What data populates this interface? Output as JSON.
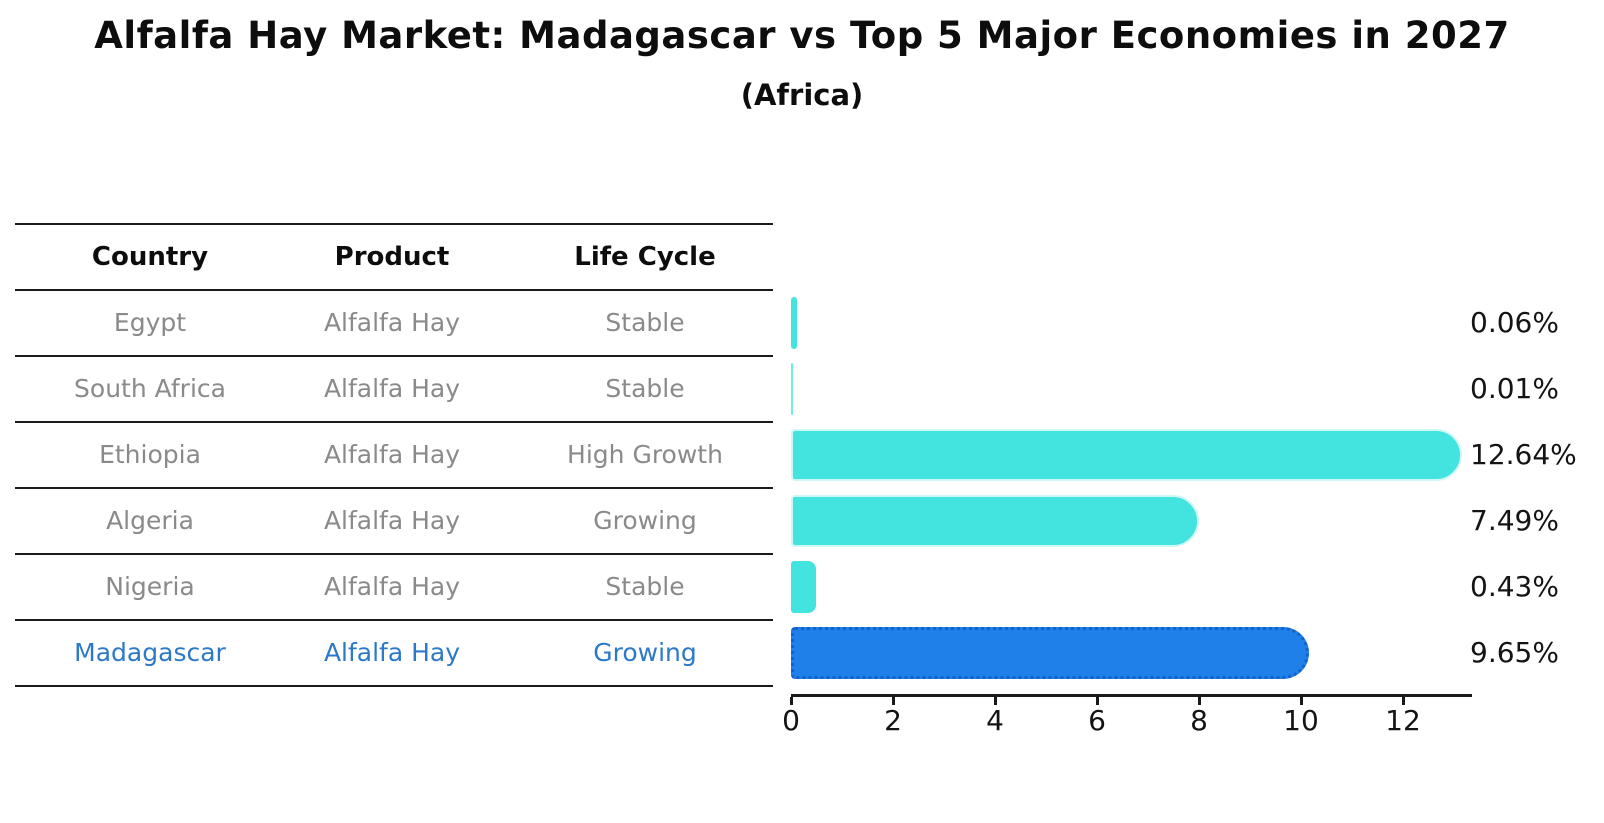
{
  "title": "Alfalfa Hay Market: Madagascar vs Top 5 Major Economies in 2027",
  "subtitle": "(Africa)",
  "table": {
    "headers": {
      "country": "Country",
      "product": "Product",
      "life_cycle": "Life Cycle"
    },
    "rows": [
      {
        "country": "Egypt",
        "product": "Alfalfa Hay",
        "life_cycle": "Stable"
      },
      {
        "country": "South Africa",
        "product": "Alfalfa Hay",
        "life_cycle": "Stable"
      },
      {
        "country": "Ethiopia",
        "product": "Alfalfa Hay",
        "life_cycle": "High Growth"
      },
      {
        "country": "Algeria",
        "product": "Alfalfa Hay",
        "life_cycle": "Growing"
      },
      {
        "country": "Nigeria",
        "product": "Alfalfa Hay",
        "life_cycle": "Stable"
      },
      {
        "country": "Madagascar",
        "product": "Alfalfa Hay",
        "life_cycle": "Growing"
      }
    ],
    "highlight_row_index": 5
  },
  "chart_data": {
    "type": "bar",
    "orientation": "horizontal",
    "title": "Alfalfa Hay Market: Madagascar vs Top 5 Major Economies in 2027 (Africa)",
    "categories": [
      "Egypt",
      "South Africa",
      "Ethiopia",
      "Algeria",
      "Nigeria",
      "Madagascar"
    ],
    "values": [
      0.06,
      0.01,
      12.64,
      7.49,
      0.43,
      9.65
    ],
    "value_labels": [
      "0.06%",
      "0.01%",
      "12.64%",
      "7.49%",
      "0.43%",
      "9.65%"
    ],
    "x_ticks": [
      0,
      2,
      4,
      6,
      8,
      10,
      12
    ],
    "xlim": [
      0,
      13.35
    ],
    "grid": false,
    "legend": false,
    "bar_color": "#43e3df",
    "bar_edge_color": "#cdf8f3",
    "highlight_index": 5,
    "highlight_color": "#1e80e8",
    "highlight_edge_color": "#1261cc",
    "highlight_text_color": "#2b79c8"
  }
}
